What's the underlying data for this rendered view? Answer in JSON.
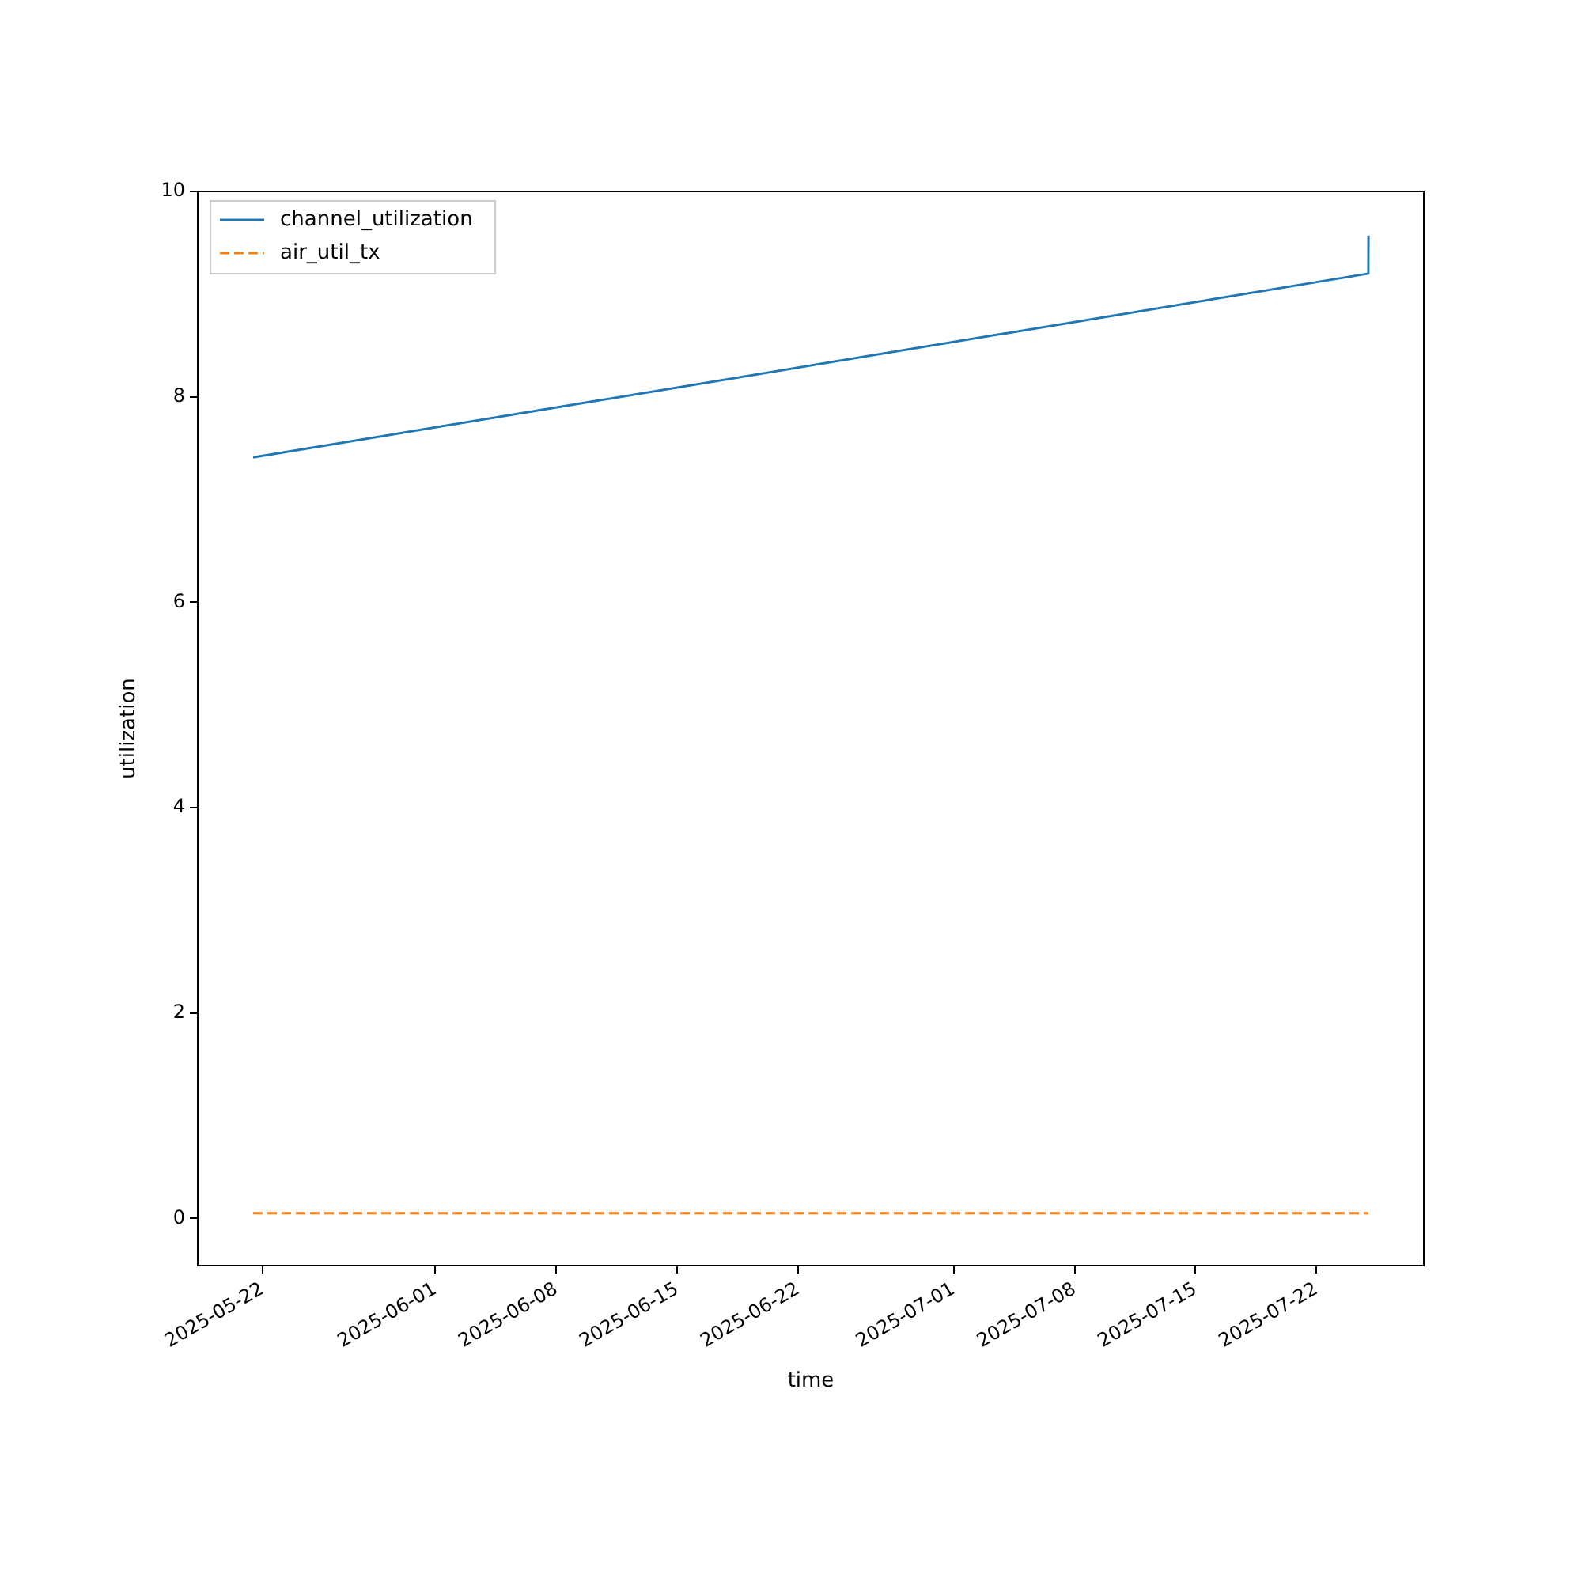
{
  "chart_data": {
    "type": "line",
    "xlabel": "time",
    "ylabel": "utilization",
    "xlim": [
      "2025-05-18T06:00",
      "2025-07-28T05:00"
    ],
    "ylim": [
      -0.46,
      10.0
    ],
    "xticks": [
      "2025-05-22",
      "2025-06-01",
      "2025-06-08",
      "2025-06-15",
      "2025-06-22",
      "2025-07-01",
      "2025-07-08",
      "2025-07-15",
      "2025-07-22"
    ],
    "yticks": [
      0,
      2,
      4,
      6,
      8,
      10
    ],
    "grid": false,
    "legend": "top left",
    "series": [
      {
        "name": "channel_utilization",
        "color": "#1f77b4",
        "line_style": "solid",
        "x": [
          "2025-05-21T11:00",
          "2025-07-25T00:00",
          "2025-07-25T00:10"
        ],
        "values": [
          7.41,
          9.2,
          9.57
        ]
      },
      {
        "name": "air_util_tx",
        "color": "#ff7f0e",
        "line_style": "dashed",
        "x": [
          "2025-05-21T11:00",
          "2025-07-25T00:10"
        ],
        "values": [
          0.05,
          0.05
        ]
      }
    ]
  }
}
